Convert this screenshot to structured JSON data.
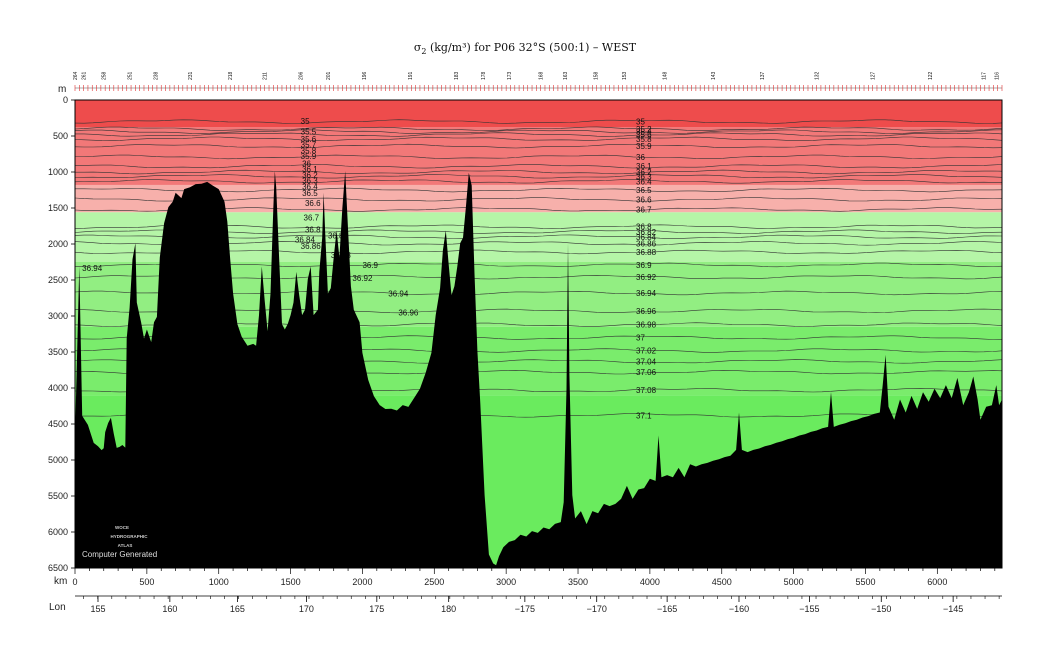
{
  "chart_data": {
    "type": "area",
    "title_prefix": "σ",
    "title_sub": "2",
    "title_unit": " (kg/m³) for P06 32°S (500:1) – WEST",
    "y_axis": {
      "unit": "m",
      "range": [
        0,
        6500
      ],
      "ticks": [
        "0",
        "500",
        "1000",
        "1500",
        "2000",
        "2500",
        "3000",
        "3500",
        "4000",
        "4500",
        "5000",
        "5500",
        "6000",
        "6500"
      ],
      "inverted": true
    },
    "x_axis": {
      "unit": "km",
      "range": [
        0,
        6450
      ],
      "ticks": [
        "0",
        "500",
        "1000",
        "1500",
        "2000",
        "2500",
        "3000",
        "3500",
        "4000",
        "4500",
        "5000",
        "5500",
        "6000"
      ]
    },
    "lon_axis": {
      "label": "Lon",
      "ticks": [
        {
          "label": "155",
          "km": 160
        },
        {
          "label": "160",
          "km": 660
        },
        {
          "label": "165",
          "km": 1130
        },
        {
          "label": "170",
          "km": 1610
        },
        {
          "label": "175",
          "km": 2100
        },
        {
          "label": "180",
          "km": 2600
        },
        {
          "label": "−175",
          "km": 3130
        },
        {
          "label": "−170",
          "km": 3630
        },
        {
          "label": "−165",
          "km": 4120
        },
        {
          "label": "−160",
          "km": 4620
        },
        {
          "label": "−155",
          "km": 5110
        },
        {
          "label": "−150",
          "km": 5610
        },
        {
          "label": "−145",
          "km": 6110
        }
      ]
    },
    "stations": [
      {
        "label": "264",
        "km": 0
      },
      {
        "label": "261",
        "km": 60
      },
      {
        "label": "258",
        "km": 200
      },
      {
        "label": "251",
        "km": 380
      },
      {
        "label": "238",
        "km": 560
      },
      {
        "label": "231",
        "km": 800
      },
      {
        "label": "218",
        "km": 1080
      },
      {
        "label": "211",
        "km": 1320
      },
      {
        "label": "206",
        "km": 1570
      },
      {
        "label": "201",
        "km": 1760
      },
      {
        "label": "196",
        "km": 2010
      },
      {
        "label": "191",
        "km": 2330
      },
      {
        "label": "183",
        "km": 2650
      },
      {
        "label": "178",
        "km": 2840
      },
      {
        "label": "173",
        "km": 3020
      },
      {
        "label": "168",
        "km": 3240
      },
      {
        "label": "163",
        "km": 3410
      },
      {
        "label": "158",
        "km": 3620
      },
      {
        "label": "153",
        "km": 3820
      },
      {
        "label": "148",
        "km": 4100
      },
      {
        "label": "143",
        "km": 4440
      },
      {
        "label": "137",
        "km": 4780
      },
      {
        "label": "132",
        "km": 5160
      },
      {
        "label": "127",
        "km": 5550
      },
      {
        "label": "122",
        "km": 5950
      },
      {
        "label": "117",
        "km": 6320
      },
      {
        "label": "116",
        "km": 6410
      }
    ],
    "color_bands": [
      {
        "from": 0,
        "to": 380,
        "color": "#ee4c4c"
      },
      {
        "from": 380,
        "to": 1180,
        "color": "#f27878"
      },
      {
        "from": 1180,
        "to": 1560,
        "color": "#f7b0ab"
      },
      {
        "from": 1560,
        "to": 2250,
        "color": "#b5f5a7"
      },
      {
        "from": 2250,
        "to": 3150,
        "color": "#92ee82"
      },
      {
        "from": 3150,
        "to": 4100,
        "color": "#7aec6c"
      },
      {
        "from": 4100,
        "to": 6500,
        "color": "#6aeb5e"
      }
    ],
    "contours": [
      {
        "value": "35",
        "depth": 300
      },
      {
        "value": "35.2",
        "depth": 400
      },
      {
        "value": "35.4",
        "depth": 440
      },
      {
        "value": "35.6",
        "depth": 480
      },
      {
        "value": "35.8",
        "depth": 540
      },
      {
        "value": "35.9",
        "depth": 640
      },
      {
        "value": "36",
        "depth": 790
      },
      {
        "value": "36.1",
        "depth": 920
      },
      {
        "value": "36.2",
        "depth": 1000
      },
      {
        "value": "36.3",
        "depth": 1060
      },
      {
        "value": "36.4",
        "depth": 1130
      },
      {
        "value": "36.5",
        "depth": 1250
      },
      {
        "value": "36.6",
        "depth": 1380
      },
      {
        "value": "36.7",
        "depth": 1520
      },
      {
        "value": "36.8",
        "depth": 1760
      },
      {
        "value": "36.82",
        "depth": 1830
      },
      {
        "value": "36.84",
        "depth": 1900
      },
      {
        "value": "36.86",
        "depth": 1990
      },
      {
        "value": "36.88",
        "depth": 2110
      },
      {
        "value": "36.9",
        "depth": 2290
      },
      {
        "value": "36.92",
        "depth": 2460
      },
      {
        "value": "36.94",
        "depth": 2680
      },
      {
        "value": "36.96",
        "depth": 2930
      },
      {
        "value": "36.98",
        "depth": 3120
      },
      {
        "value": "37",
        "depth": 3300
      },
      {
        "value": "37.02",
        "depth": 3480
      },
      {
        "value": "37.04",
        "depth": 3630
      },
      {
        "value": "37.06",
        "depth": 3780
      },
      {
        "value": "37.08",
        "depth": 4030
      },
      {
        "value": "37.1",
        "depth": 4380
      }
    ],
    "left_contour_labels": [
      {
        "value": "35",
        "km": 1570,
        "depth": 290
      },
      {
        "value": "35.5",
        "km": 1570,
        "depth": 440
      },
      {
        "value": "35.6",
        "km": 1570,
        "depth": 540
      },
      {
        "value": "35.7",
        "km": 1570,
        "depth": 620
      },
      {
        "value": "35.8",
        "km": 1570,
        "depth": 700
      },
      {
        "value": "35.9",
        "km": 1570,
        "depth": 780
      },
      {
        "value": "36",
        "km": 1580,
        "depth": 880
      },
      {
        "value": "36.1",
        "km": 1580,
        "depth": 960
      },
      {
        "value": "36.2",
        "km": 1580,
        "depth": 1040
      },
      {
        "value": "36.3",
        "km": 1580,
        "depth": 1120
      },
      {
        "value": "36.4",
        "km": 1580,
        "depth": 1200
      },
      {
        "value": "36.5",
        "km": 1580,
        "depth": 1290
      },
      {
        "value": "36.6",
        "km": 1600,
        "depth": 1430
      },
      {
        "value": "36.7",
        "km": 1590,
        "depth": 1630
      },
      {
        "value": "36.8",
        "km": 1600,
        "depth": 1800
      },
      {
        "value": "36.82",
        "km": 1760,
        "depth": 1880
      },
      {
        "value": "36.84",
        "km": 1530,
        "depth": 1940
      },
      {
        "value": "36.86",
        "km": 1570,
        "depth": 2030
      },
      {
        "value": "36.88",
        "km": 1780,
        "depth": 2150
      },
      {
        "value": "36.9",
        "km": 2000,
        "depth": 2290
      },
      {
        "value": "36.92",
        "km": 1930,
        "depth": 2470
      },
      {
        "value": "36.94",
        "km": 2180,
        "depth": 2690
      },
      {
        "value": "36.96",
        "km": 2250,
        "depth": 2950
      },
      {
        "value": "36.94",
        "km": 50,
        "depth": 2330
      }
    ],
    "colors": {
      "bathymetry": "#000000",
      "contour_line": "#333333",
      "frame": "#000000",
      "station_marker": "#e03030"
    }
  },
  "watermark": {
    "logo_lines": [
      "WOCE",
      "HYDROGRAPHIC",
      "ATLAS"
    ],
    "credit": "Computer Generated"
  }
}
